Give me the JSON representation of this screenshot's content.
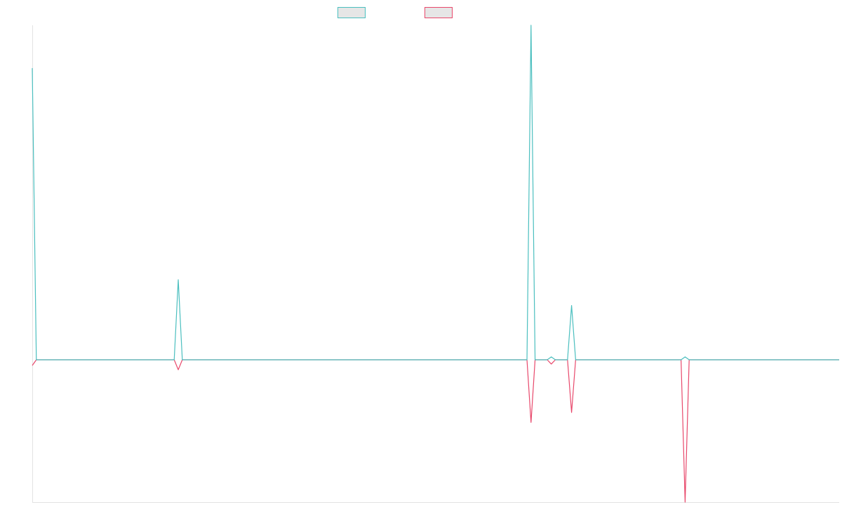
{
  "chart_data": {
    "type": "line",
    "title": "",
    "xlabel": "",
    "ylabel": "",
    "grid": false,
    "legend_position": "top-center",
    "x_count": 200,
    "ylim": [
      -50,
      117
    ],
    "series": [
      {
        "color": "#4bbfbf",
        "fill": "#e6e6e6",
        "values": [
          102,
          0,
          0,
          0,
          0,
          0,
          0,
          0,
          0,
          0,
          0,
          0,
          0,
          0,
          0,
          0,
          0,
          0,
          0,
          0,
          0,
          0,
          0,
          0,
          0,
          0,
          0,
          0,
          0,
          0,
          0,
          0,
          0,
          0,
          0,
          0,
          28,
          0,
          0,
          0,
          0,
          0,
          0,
          0,
          0,
          0,
          0,
          0,
          0,
          0,
          0,
          0,
          0,
          0,
          0,
          0,
          0,
          0,
          0,
          0,
          0,
          0,
          0,
          0,
          0,
          0,
          0,
          0,
          0,
          0,
          0,
          0,
          0,
          0,
          0,
          0,
          0,
          0,
          0,
          0,
          0,
          0,
          0,
          0,
          0,
          0,
          0,
          0,
          0,
          0,
          0,
          0,
          0,
          0,
          0,
          0,
          0,
          0,
          0,
          0,
          0,
          0,
          0,
          0,
          0,
          0,
          0,
          0,
          0,
          0,
          0,
          0,
          0,
          0,
          0,
          0,
          0,
          0,
          0,
          0,
          0,
          0,
          0,
          117,
          0,
          0,
          0,
          0,
          1,
          0,
          0,
          0,
          0,
          19,
          0,
          0,
          0,
          0,
          0,
          0,
          0,
          0,
          0,
          0,
          0,
          0,
          0,
          0,
          0,
          0,
          0,
          0,
          0,
          0,
          0,
          0,
          0,
          0,
          0,
          0,
          0,
          1,
          0,
          0,
          0,
          0,
          0,
          0,
          0,
          0,
          0,
          0,
          0,
          0,
          0,
          0,
          0,
          0,
          0,
          0,
          0,
          0,
          0,
          0,
          0,
          0,
          0,
          0,
          0,
          0,
          0,
          0,
          0,
          0,
          0,
          0,
          0,
          0,
          0,
          0
        ]
      },
      {
        "color": "#e8486b",
        "fill": "#e6e6e6",
        "values": [
          -2,
          0,
          0,
          0,
          0,
          0,
          0,
          0,
          0,
          0,
          0,
          0,
          0,
          0,
          0,
          0,
          0,
          0,
          0,
          0,
          0,
          0,
          0,
          0,
          0,
          0,
          0,
          0,
          0,
          0,
          0,
          0,
          0,
          0,
          0,
          0,
          -3.5,
          0,
          0,
          0,
          0,
          0,
          0,
          0,
          0,
          0,
          0,
          0,
          0,
          0,
          0,
          0,
          0,
          0,
          0,
          0,
          0,
          0,
          0,
          0,
          0,
          0,
          0,
          0,
          0,
          0,
          0,
          0,
          0,
          0,
          0,
          0,
          0,
          0,
          0,
          0,
          0,
          0,
          0,
          0,
          0,
          0,
          0,
          0,
          0,
          0,
          0,
          0,
          0,
          0,
          0,
          0,
          0,
          0,
          0,
          0,
          0,
          0,
          0,
          0,
          0,
          0,
          0,
          0,
          0,
          0,
          0,
          0,
          0,
          0,
          0,
          0,
          0,
          0,
          0,
          0,
          0,
          0,
          0,
          0,
          0,
          0,
          0,
          -22,
          0,
          0,
          0,
          0,
          -1.5,
          0,
          0,
          0,
          0,
          -18.5,
          0,
          0,
          0,
          0,
          0,
          0,
          0,
          0,
          0,
          0,
          0,
          0,
          0,
          0,
          0,
          0,
          0,
          0,
          0,
          0,
          0,
          0,
          0,
          0,
          0,
          0,
          0,
          -50,
          0,
          0,
          0,
          0,
          0,
          0,
          0,
          0,
          0,
          0,
          0,
          0,
          0,
          0,
          0,
          0,
          0,
          0,
          0,
          0,
          0,
          0,
          0,
          0,
          0,
          0,
          0,
          0,
          0,
          0,
          0,
          0,
          0,
          0,
          0,
          0,
          0,
          0
        ]
      }
    ]
  }
}
